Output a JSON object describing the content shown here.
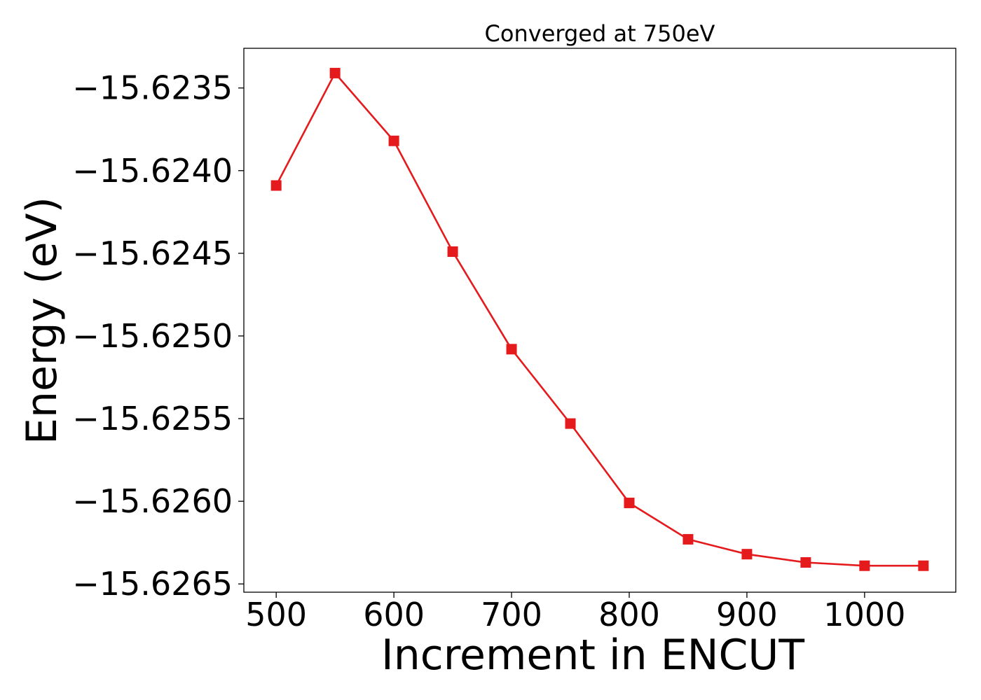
{
  "chart_data": {
    "type": "line",
    "title": "Converged at 750eV",
    "xlabel": "Increment in ENCUT",
    "ylabel": "Energy (eV)",
    "xlim": [
      472.5,
      1077.5
    ],
    "ylim": [
      -15.62655,
      -15.62326
    ],
    "x_ticks": [
      500,
      600,
      700,
      800,
      900,
      1000
    ],
    "x_tick_labels": [
      "500",
      "600",
      "700",
      "800",
      "900",
      "1000"
    ],
    "y_ticks": [
      -15.6235,
      -15.624,
      -15.6245,
      -15.625,
      -15.6255,
      -15.626,
      -15.6265
    ],
    "y_tick_labels": [
      "−15.6235",
      "−15.6240",
      "−15.6245",
      "−15.6250",
      "−15.6255",
      "−15.6260",
      "−15.6265"
    ],
    "grid": false,
    "legend": "none",
    "marker": "square",
    "color": "#e41a1c",
    "series": [
      {
        "x": [
          500,
          550,
          600,
          650,
          700,
          750,
          800,
          850,
          900,
          950,
          1000,
          1050
        ],
        "values": [
          -15.62409,
          -15.62341,
          -15.62382,
          -15.62449,
          -15.62508,
          -15.62553,
          -15.62601,
          -15.62623,
          -15.62632,
          -15.62637,
          -15.62639,
          -15.62639
        ]
      }
    ]
  }
}
